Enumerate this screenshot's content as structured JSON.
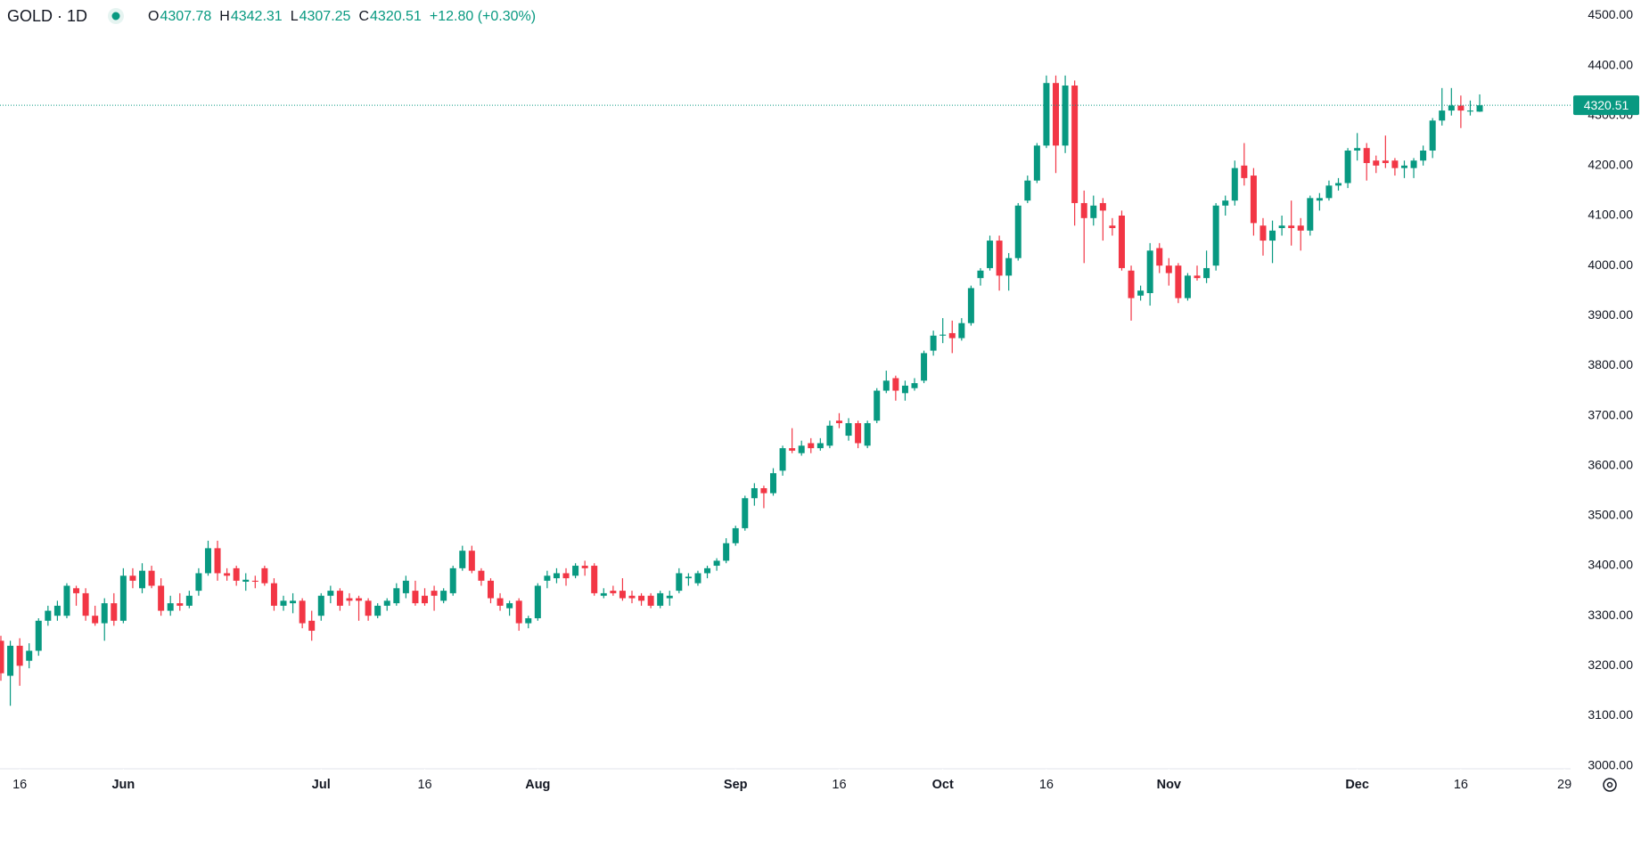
{
  "header": {
    "symbol": "GOLD · 1D",
    "ohlc_labels": [
      "O",
      "H",
      "L",
      "C"
    ],
    "ohlc_values": [
      4307.78,
      4342.31,
      4307.25,
      4320.51
    ],
    "change": "+12.80 (+0.30%)"
  },
  "chart_data": {
    "type": "candlestick",
    "up_color": "#089981",
    "down_color": "#f23645",
    "ylim": [
      2994,
      4531
    ],
    "yticks": [
      {
        "value": 3000,
        "label": "3000.00"
      },
      {
        "value": 3100,
        "label": "3100.00"
      },
      {
        "value": 3200,
        "label": "3200.00"
      },
      {
        "value": 3300,
        "label": "3300.00"
      },
      {
        "value": 3400,
        "label": "3400.00"
      },
      {
        "value": 3500,
        "label": "3500.00"
      },
      {
        "value": 3600,
        "label": "3600.00"
      },
      {
        "value": 3700,
        "label": "3700.00"
      },
      {
        "value": 3800,
        "label": "3800.00"
      },
      {
        "value": 3900,
        "label": "3900.00"
      },
      {
        "value": 4000,
        "label": "4000.00"
      },
      {
        "value": 4100,
        "label": "4100.00"
      },
      {
        "value": 4200,
        "label": "4200.00"
      },
      {
        "value": 4300,
        "label": "4300.00"
      },
      {
        "value": 4400,
        "label": "4400.00"
      },
      {
        "value": 4500,
        "label": "4500.00"
      }
    ],
    "xticks": [
      {
        "value": 2,
        "label": "16"
      },
      {
        "value": 13,
        "label": "Jun"
      },
      {
        "value": 34,
        "label": "Jul"
      },
      {
        "value": 45,
        "label": "16"
      },
      {
        "value": 57,
        "label": "Aug"
      },
      {
        "value": 78,
        "label": "Sep"
      },
      {
        "value": 89,
        "label": "16"
      },
      {
        "value": 100,
        "label": "Oct"
      },
      {
        "value": 111,
        "label": "16"
      },
      {
        "value": 124,
        "label": "Nov"
      },
      {
        "value": 144,
        "label": "Dec"
      },
      {
        "value": 155,
        "label": "16"
      },
      {
        "value": 166,
        "label": "29"
      }
    ],
    "last_price": 4320.51,
    "ohlc": [
      [
        3250,
        3260,
        3170,
        3185
      ],
      [
        3180,
        3250,
        3120,
        3240
      ],
      [
        3240,
        3255,
        3160,
        3200
      ],
      [
        3210,
        3245,
        3195,
        3230
      ],
      [
        3230,
        3295,
        3220,
        3290
      ],
      [
        3290,
        3320,
        3280,
        3310
      ],
      [
        3300,
        3330,
        3290,
        3320
      ],
      [
        3300,
        3365,
        3295,
        3360
      ],
      [
        3355,
        3360,
        3320,
        3345
      ],
      [
        3345,
        3355,
        3290,
        3300
      ],
      [
        3300,
        3320,
        3280,
        3285
      ],
      [
        3285,
        3335,
        3250,
        3325
      ],
      [
        3325,
        3345,
        3280,
        3290
      ],
      [
        3290,
        3395,
        3285,
        3380
      ],
      [
        3380,
        3395,
        3355,
        3370
      ],
      [
        3355,
        3405,
        3345,
        3390
      ],
      [
        3390,
        3400,
        3355,
        3360
      ],
      [
        3360,
        3375,
        3300,
        3310
      ],
      [
        3310,
        3340,
        3300,
        3325
      ],
      [
        3325,
        3345,
        3310,
        3320
      ],
      [
        3320,
        3350,
        3315,
        3340
      ],
      [
        3350,
        3395,
        3340,
        3385
      ],
      [
        3385,
        3450,
        3380,
        3435
      ],
      [
        3435,
        3450,
        3370,
        3385
      ],
      [
        3385,
        3395,
        3370,
        3380
      ],
      [
        3395,
        3400,
        3360,
        3370
      ],
      [
        3368,
        3385,
        3350,
        3372
      ],
      [
        3370,
        3380,
        3355,
        3368
      ],
      [
        3395,
        3400,
        3360,
        3365
      ],
      [
        3365,
        3375,
        3310,
        3320
      ],
      [
        3320,
        3340,
        3310,
        3330
      ],
      [
        3325,
        3345,
        3305,
        3330
      ],
      [
        3330,
        3335,
        3275,
        3285
      ],
      [
        3290,
        3310,
        3250,
        3270
      ],
      [
        3300,
        3345,
        3290,
        3340
      ],
      [
        3340,
        3360,
        3325,
        3350
      ],
      [
        3350,
        3355,
        3310,
        3320
      ],
      [
        3335,
        3345,
        3320,
        3330
      ],
      [
        3335,
        3340,
        3290,
        3330
      ],
      [
        3330,
        3335,
        3290,
        3300
      ],
      [
        3300,
        3325,
        3295,
        3320
      ],
      [
        3320,
        3335,
        3310,
        3330
      ],
      [
        3325,
        3365,
        3320,
        3355
      ],
      [
        3345,
        3380,
        3335,
        3370
      ],
      [
        3350,
        3370,
        3320,
        3325
      ],
      [
        3340,
        3355,
        3320,
        3325
      ],
      [
        3350,
        3360,
        3310,
        3340
      ],
      [
        3330,
        3355,
        3325,
        3350
      ],
      [
        3345,
        3400,
        3340,
        3395
      ],
      [
        3395,
        3440,
        3390,
        3430
      ],
      [
        3430,
        3440,
        3385,
        3390
      ],
      [
        3390,
        3395,
        3360,
        3370
      ],
      [
        3370,
        3375,
        3325,
        3335
      ],
      [
        3335,
        3345,
        3310,
        3320
      ],
      [
        3315,
        3330,
        3300,
        3325
      ],
      [
        3330,
        3335,
        3270,
        3285
      ],
      [
        3285,
        3300,
        3275,
        3295
      ],
      [
        3295,
        3365,
        3290,
        3360
      ],
      [
        3370,
        3390,
        3355,
        3380
      ],
      [
        3375,
        3395,
        3365,
        3385
      ],
      [
        3385,
        3395,
        3360,
        3375
      ],
      [
        3380,
        3405,
        3375,
        3400
      ],
      [
        3400,
        3410,
        3380,
        3395
      ],
      [
        3400,
        3405,
        3340,
        3345
      ],
      [
        3340,
        3355,
        3335,
        3345
      ],
      [
        3350,
        3360,
        3340,
        3345
      ],
      [
        3350,
        3375,
        3330,
        3335
      ],
      [
        3340,
        3350,
        3325,
        3335
      ],
      [
        3340,
        3345,
        3320,
        3330
      ],
      [
        3340,
        3345,
        3315,
        3320
      ],
      [
        3320,
        3350,
        3315,
        3345
      ],
      [
        3335,
        3350,
        3320,
        3340
      ],
      [
        3350,
        3395,
        3345,
        3385
      ],
      [
        3375,
        3385,
        3360,
        3378
      ],
      [
        3365,
        3390,
        3360,
        3385
      ],
      [
        3385,
        3400,
        3375,
        3395
      ],
      [
        3400,
        3415,
        3390,
        3410
      ],
      [
        3410,
        3455,
        3405,
        3445
      ],
      [
        3445,
        3480,
        3440,
        3475
      ],
      [
        3475,
        3540,
        3470,
        3535
      ],
      [
        3535,
        3565,
        3520,
        3555
      ],
      [
        3555,
        3560,
        3515,
        3545
      ],
      [
        3545,
        3595,
        3540,
        3585
      ],
      [
        3590,
        3640,
        3580,
        3635
      ],
      [
        3635,
        3675,
        3625,
        3630
      ],
      [
        3625,
        3650,
        3620,
        3640
      ],
      [
        3645,
        3655,
        3625,
        3635
      ],
      [
        3635,
        3655,
        3630,
        3645
      ],
      [
        3640,
        3690,
        3635,
        3680
      ],
      [
        3690,
        3705,
        3675,
        3685
      ],
      [
        3660,
        3695,
        3650,
        3685
      ],
      [
        3685,
        3690,
        3635,
        3645
      ],
      [
        3640,
        3690,
        3635,
        3685
      ],
      [
        3690,
        3755,
        3685,
        3750
      ],
      [
        3750,
        3790,
        3745,
        3770
      ],
      [
        3775,
        3780,
        3730,
        3750
      ],
      [
        3745,
        3770,
        3730,
        3760
      ],
      [
        3755,
        3775,
        3750,
        3765
      ],
      [
        3770,
        3830,
        3765,
        3825
      ],
      [
        3830,
        3870,
        3820,
        3860
      ],
      [
        3860,
        3895,
        3845,
        3862
      ],
      [
        3865,
        3890,
        3825,
        3855
      ],
      [
        3855,
        3895,
        3850,
        3885
      ],
      [
        3885,
        3960,
        3880,
        3955
      ],
      [
        3975,
        3995,
        3960,
        3990
      ],
      [
        3995,
        4060,
        3990,
        4050
      ],
      [
        4050,
        4060,
        3950,
        3980
      ],
      [
        3980,
        4025,
        3950,
        4015
      ],
      [
        4015,
        4125,
        4010,
        4120
      ],
      [
        4130,
        4180,
        4125,
        4170
      ],
      [
        4170,
        4245,
        4165,
        4240
      ],
      [
        4240,
        4380,
        4235,
        4365
      ],
      [
        4365,
        4380,
        4185,
        4240
      ],
      [
        4240,
        4380,
        4225,
        4360
      ],
      [
        4360,
        4370,
        4080,
        4125
      ],
      [
        4125,
        4150,
        4005,
        4095
      ],
      [
        4095,
        4140,
        4080,
        4120
      ],
      [
        4125,
        4135,
        4050,
        4110
      ],
      [
        4080,
        4095,
        4060,
        4075
      ],
      [
        4100,
        4110,
        3990,
        3995
      ],
      [
        3990,
        4000,
        3890,
        3935
      ],
      [
        3940,
        3960,
        3930,
        3950
      ],
      [
        3945,
        4045,
        3920,
        4030
      ],
      [
        4035,
        4045,
        3985,
        4000
      ],
      [
        4000,
        4015,
        3960,
        3985
      ],
      [
        4000,
        4005,
        3925,
        3935
      ],
      [
        3935,
        3985,
        3930,
        3980
      ],
      [
        3980,
        4000,
        3970,
        3975
      ],
      [
        3975,
        4030,
        3965,
        3995
      ],
      [
        4000,
        4125,
        3990,
        4120
      ],
      [
        4120,
        4140,
        4100,
        4130
      ],
      [
        4130,
        4210,
        4120,
        4195
      ],
      [
        4200,
        4245,
        4160,
        4175
      ],
      [
        4180,
        4195,
        4060,
        4085
      ],
      [
        4080,
        4095,
        4020,
        4050
      ],
      [
        4050,
        4090,
        4005,
        4070
      ],
      [
        4075,
        4100,
        4060,
        4080
      ],
      [
        4080,
        4130,
        4040,
        4075
      ],
      [
        4080,
        4095,
        4030,
        4070
      ],
      [
        4070,
        4140,
        4060,
        4135
      ],
      [
        4130,
        4145,
        4110,
        4135
      ],
      [
        4135,
        4170,
        4130,
        4160
      ],
      [
        4160,
        4175,
        4150,
        4165
      ],
      [
        4165,
        4235,
        4155,
        4230
      ],
      [
        4230,
        4265,
        4210,
        4235
      ],
      [
        4235,
        4245,
        4170,
        4205
      ],
      [
        4210,
        4220,
        4185,
        4200
      ],
      [
        4210,
        4260,
        4195,
        4205
      ],
      [
        4210,
        4215,
        4180,
        4195
      ],
      [
        4195,
        4210,
        4175,
        4200
      ],
      [
        4195,
        4215,
        4175,
        4210
      ],
      [
        4210,
        4240,
        4200,
        4230
      ],
      [
        4230,
        4295,
        4215,
        4290
      ],
      [
        4290,
        4355,
        4280,
        4310
      ],
      [
        4310,
        4355,
        4300,
        4320
      ],
      [
        4320,
        4340,
        4275,
        4310
      ],
      [
        4308,
        4330,
        4300,
        4310
      ],
      [
        4307.78,
        4342.31,
        4307.25,
        4320.51
      ]
    ]
  }
}
